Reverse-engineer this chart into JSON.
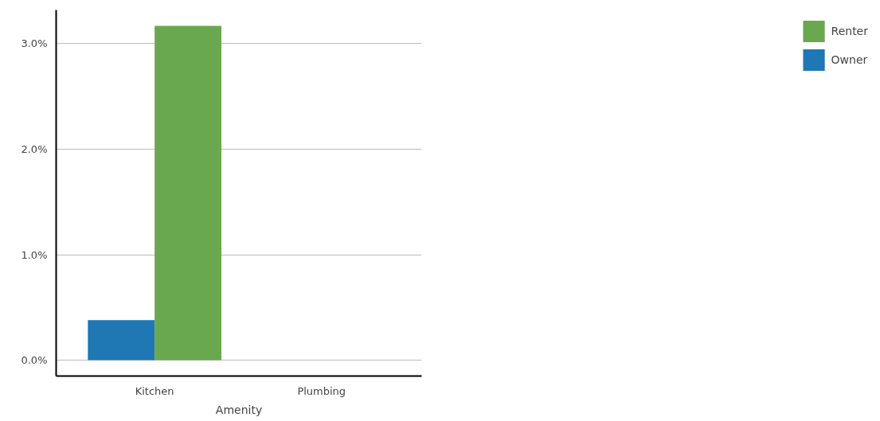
{
  "chart_data": {
    "type": "bar",
    "xlabel": "Amenity",
    "categories": [
      "Kitchen",
      "Plumbing"
    ],
    "series": [
      {
        "name": "Owner",
        "color": "#1f77b4",
        "values": [
          0.38,
          0
        ]
      },
      {
        "name": "Renter",
        "color": "#6aa84f",
        "values": [
          3.17,
          0
        ]
      }
    ],
    "ylim": [
      -0.15,
      3.32
    ],
    "yticks": [
      {
        "value": 0,
        "label": "0.0%"
      },
      {
        "value": 1,
        "label": "1.0%"
      },
      {
        "value": 2,
        "label": "2.0%"
      },
      {
        "value": 3,
        "label": "3.0%"
      }
    ],
    "grid": "y",
    "legend": "right"
  }
}
